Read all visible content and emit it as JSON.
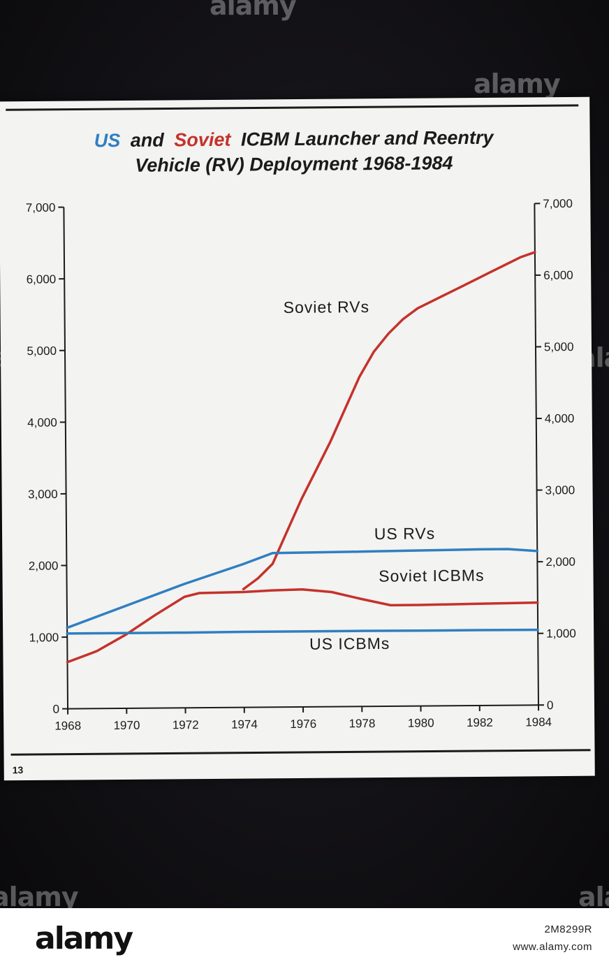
{
  "page_number": "13",
  "title": {
    "us": "US",
    "and": "and",
    "soviet": "Soviet",
    "rest_line1": "ICBM Launcher and Reentry",
    "line2": "Vehicle (RV) Deployment 1968-1984"
  },
  "colors": {
    "us": "#2f7fc1",
    "soviet": "#c4322b",
    "text": "#1b1b1b"
  },
  "watermark": {
    "brand": "alamy",
    "image_id": "2M8299R",
    "url": "www.alamy.com"
  },
  "chart_data": {
    "type": "line",
    "x_ticks": [
      "1968",
      "1970",
      "1972",
      "1974",
      "1976",
      "1978",
      "1980",
      "1982",
      "1984"
    ],
    "x_range": [
      1968,
      1984
    ],
    "y_ticks_left": [
      "0",
      "1,000",
      "2,000",
      "3,000",
      "4,000",
      "5,000",
      "6,000",
      "7,000"
    ],
    "y_ticks_right": [
      "0",
      "1,000",
      "2,000",
      "3,000",
      "4,000",
      "5,000",
      "6,000",
      "7,000"
    ],
    "ylim": [
      0,
      7000
    ],
    "grid": false,
    "series": [
      {
        "name": "Soviet RVs",
        "color": "soviet",
        "x": [
          1974,
          1974.5,
          1975,
          1975.5,
          1976,
          1976.5,
          1977,
          1977.5,
          1978,
          1978.5,
          1979,
          1979.5,
          1980,
          1980.5,
          1981,
          1981.5,
          1982,
          1982.5,
          1983,
          1983.5,
          1984
        ],
        "y": [
          1650,
          1800,
          2000,
          2450,
          2900,
          3300,
          3700,
          4150,
          4600,
          4950,
          5200,
          5400,
          5550,
          5650,
          5750,
          5850,
          5950,
          6050,
          6150,
          6250,
          6320
        ]
      },
      {
        "name": "US RVs",
        "color": "us",
        "x": [
          1968,
          1970,
          1972,
          1974,
          1975,
          1978,
          1980,
          1982,
          1983,
          1984
        ],
        "y": [
          1130,
          1430,
          1730,
          2000,
          2150,
          2160,
          2170,
          2180,
          2180,
          2150
        ]
      },
      {
        "name": "Soviet ICBMs",
        "color": "soviet",
        "x": [
          1968,
          1969,
          1970,
          1971,
          1972,
          1972.5,
          1974,
          1975,
          1976,
          1977,
          1978,
          1979,
          1980,
          1982,
          1984
        ],
        "y": [
          650,
          800,
          1030,
          1300,
          1550,
          1600,
          1610,
          1630,
          1640,
          1600,
          1500,
          1410,
          1410,
          1420,
          1430
        ]
      },
      {
        "name": "US ICBMs",
        "color": "us",
        "x": [
          1968,
          1970,
          1972,
          1974,
          1976,
          1978,
          1980,
          1982,
          1984
        ],
        "y": [
          1050,
          1050,
          1050,
          1054,
          1054,
          1054,
          1052,
          1052,
          1050
        ]
      }
    ]
  }
}
